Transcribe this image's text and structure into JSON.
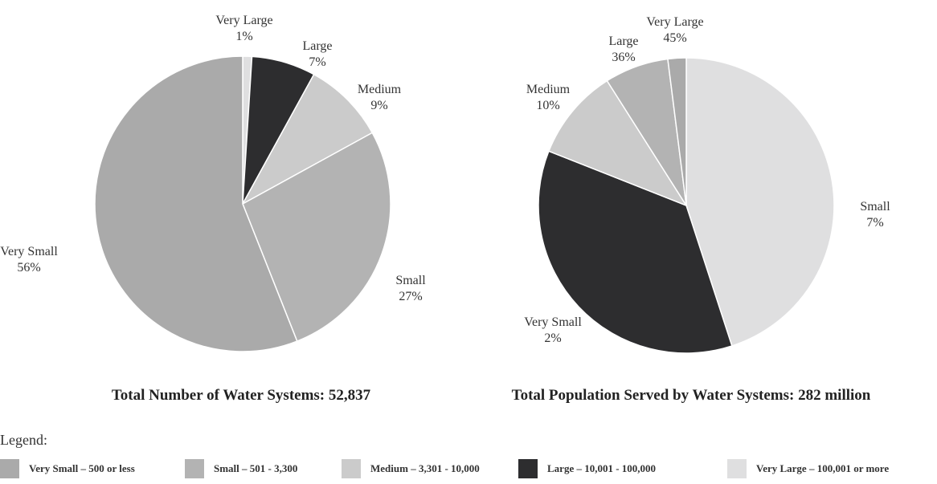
{
  "colors": {
    "very_small": "#aaaaaa",
    "small": "#b3b3b3",
    "medium": "#cbcbcb",
    "large": "#2d2d2f",
    "very_large": "#dfdfe0",
    "edge": "#ffffff"
  },
  "chart_data": [
    {
      "type": "pie",
      "title": "Total Number of Water Systems:  52,837",
      "categories": [
        "Very Large",
        "Large",
        "Medium",
        "Small",
        "Very Small"
      ],
      "values": [
        1,
        7,
        9,
        27,
        56
      ],
      "value_labels": [
        "1%",
        "7%",
        "9%",
        "27%",
        "56%"
      ],
      "colors": [
        "#dfdfe0",
        "#2d2d2f",
        "#cbcbcb",
        "#b3b3b3",
        "#aaaaaa"
      ],
      "start": "12 o'clock, clockwise"
    },
    {
      "type": "pie",
      "title": "Total Population Served by Water Systems:  282 million",
      "categories": [
        "Very Large",
        "Large",
        "Medium",
        "Small",
        "Very Small"
      ],
      "values": [
        45,
        36,
        10,
        7,
        2
      ],
      "value_labels": [
        "45%",
        "36%",
        "10%",
        "7%",
        "2%"
      ],
      "colors": [
        "#dfdfe0",
        "#2d2d2f",
        "#cbcbcb",
        "#b3b3b3",
        "#aaaaaa"
      ],
      "start": "12 o'clock, clockwise"
    }
  ],
  "legend": {
    "title": "Legend:",
    "items": [
      {
        "label": "Very Small – 500 or less",
        "color": "#aaaaaa"
      },
      {
        "label": "Small – 501 - 3,300",
        "color": "#b3b3b3"
      },
      {
        "label": "Medium – 3,301 - 10,000",
        "color": "#cbcbcb"
      },
      {
        "label": "Large – 10,001 - 100,000",
        "color": "#2d2d2f"
      },
      {
        "label": "Very Large – 100,001 or more",
        "color": "#dfdfe0"
      }
    ]
  }
}
